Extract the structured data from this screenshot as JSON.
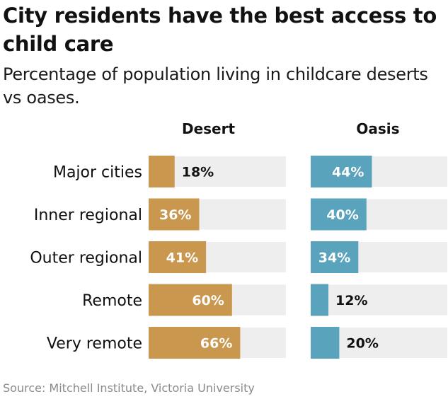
{
  "header": {
    "title": "City residents have the best access to child care",
    "subtitle": "Percentage of population living in childcare deserts vs oases."
  },
  "source": "Source: Mitchell Institute, Victoria University",
  "colors": {
    "desert": "#c9974e",
    "oasis": "#5aa3bd",
    "track": "#eeeeee",
    "label_inside": "#ffffff",
    "label_outside": "#111111"
  },
  "chart_data": {
    "type": "bar",
    "orientation": "horizontal",
    "title": "City residents have the best access to child care",
    "subtitle": "Percentage of population living in childcare deserts vs oases.",
    "categories": [
      "Major cities",
      "Inner regional",
      "Outer regional",
      "Remote",
      "Very remote"
    ],
    "series": [
      {
        "name": "Desert",
        "values": [
          18,
          36,
          41,
          60,
          66
        ],
        "labels": [
          "18%",
          "36%",
          "41%",
          "60%",
          "66%"
        ]
      },
      {
        "name": "Oasis",
        "values": [
          44,
          40,
          34,
          12,
          20
        ],
        "labels": [
          "44%",
          "40%",
          "34%",
          "12%",
          "20%"
        ]
      }
    ],
    "xlim": [
      0,
      100
    ],
    "unit": "%",
    "grid": false,
    "legend": "column headers"
  }
}
